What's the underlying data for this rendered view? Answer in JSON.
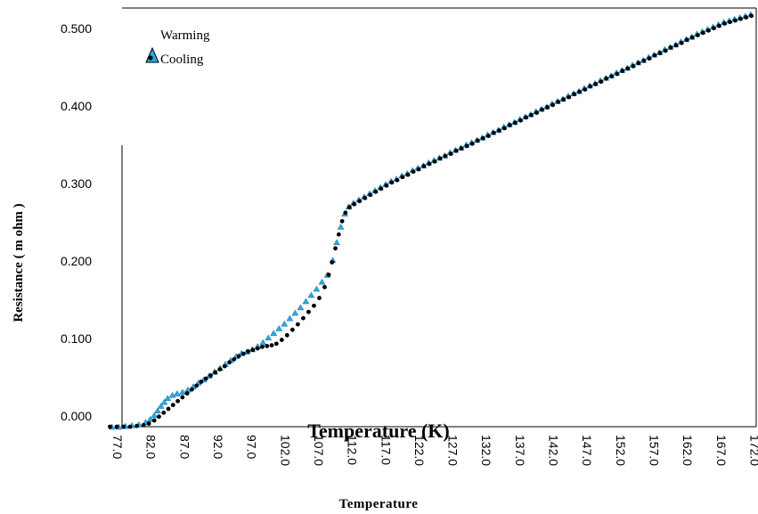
{
  "chart_data": {
    "type": "scatter",
    "title": "",
    "xlabel": "Temperature",
    "xlabel_overlay": "Temperature (K)",
    "ylabel": "Resistance ( m ohm )",
    "xlim": [
      77.0,
      173.0
    ],
    "ylim": [
      0.0,
      0.54
    ],
    "x_ticks": [
      "77.0",
      "82.0",
      "87.0",
      "92.0",
      "97.0",
      "102.0",
      "107.0",
      "112.0",
      "117.0",
      "122.0",
      "127.0",
      "132.0",
      "137.0",
      "142.0",
      "147.0",
      "152.0",
      "157.0",
      "162.0",
      "167.0",
      "172.0"
    ],
    "x_tick_values": [
      77,
      82,
      87,
      92,
      97,
      102,
      107,
      112,
      117,
      122,
      127,
      132,
      137,
      142,
      147,
      152,
      157,
      162,
      167,
      172
    ],
    "y_ticks": [
      "0.000",
      "0.100",
      "0.200",
      "0.300",
      "0.400",
      "0.500"
    ],
    "y_tick_values": [
      0.0,
      0.1,
      0.2,
      0.3,
      0.4,
      0.5
    ],
    "legend_position": "top-left",
    "grid": false,
    "series": [
      {
        "name": "Warming",
        "marker": "triangle",
        "color": "#29abe2",
        "points": [
          [
            77.5,
            0.0
          ],
          [
            78.5,
            0.0
          ],
          [
            79.5,
            0.001
          ],
          [
            80.5,
            0.002
          ],
          [
            81.5,
            0.003
          ],
          [
            82.5,
            0.006
          ],
          [
            83.2,
            0.01
          ],
          [
            83.8,
            0.015
          ],
          [
            84.3,
            0.021
          ],
          [
            84.8,
            0.027
          ],
          [
            85.3,
            0.032
          ],
          [
            85.8,
            0.037
          ],
          [
            86.5,
            0.041
          ],
          [
            87.2,
            0.043
          ],
          [
            88.0,
            0.045
          ],
          [
            88.8,
            0.048
          ],
          [
            89.6,
            0.052
          ],
          [
            90.4,
            0.057
          ],
          [
            91.2,
            0.061
          ],
          [
            92.0,
            0.066
          ],
          [
            92.8,
            0.071
          ],
          [
            93.6,
            0.076
          ],
          [
            94.4,
            0.081
          ],
          [
            95.2,
            0.086
          ],
          [
            96.0,
            0.091
          ],
          [
            96.8,
            0.095
          ],
          [
            97.6,
            0.097
          ],
          [
            98.4,
            0.1
          ],
          [
            99.2,
            0.104
          ],
          [
            100.0,
            0.109
          ],
          [
            100.8,
            0.115
          ],
          [
            101.6,
            0.121
          ],
          [
            102.4,
            0.127
          ],
          [
            103.2,
            0.133
          ],
          [
            104.0,
            0.14
          ],
          [
            104.8,
            0.147
          ],
          [
            105.6,
            0.154
          ],
          [
            106.4,
            0.162
          ],
          [
            107.2,
            0.17
          ],
          [
            108.0,
            0.178
          ],
          [
            108.8,
            0.187
          ],
          [
            109.6,
            0.196
          ],
          [
            110.4,
            0.215
          ],
          [
            111.0,
            0.238
          ],
          [
            111.6,
            0.258
          ],
          [
            112.2,
            0.275
          ],
          [
            112.8,
            0.284
          ],
          [
            113.5,
            0.289
          ],
          [
            114.3,
            0.293
          ],
          [
            115.1,
            0.297
          ],
          [
            115.9,
            0.301
          ],
          [
            116.7,
            0.305
          ],
          [
            117.5,
            0.309
          ],
          [
            118.3,
            0.313
          ],
          [
            119.1,
            0.317
          ],
          [
            119.9,
            0.32
          ],
          [
            120.7,
            0.324
          ],
          [
            121.5,
            0.327
          ],
          [
            122.3,
            0.331
          ],
          [
            123.1,
            0.334
          ],
          [
            123.9,
            0.337
          ],
          [
            124.7,
            0.341
          ],
          [
            125.5,
            0.344
          ],
          [
            126.3,
            0.347
          ],
          [
            127.1,
            0.35
          ],
          [
            127.9,
            0.354
          ],
          [
            128.7,
            0.357
          ],
          [
            129.5,
            0.36
          ],
          [
            130.3,
            0.364
          ],
          [
            131.1,
            0.367
          ],
          [
            131.9,
            0.37
          ],
          [
            132.7,
            0.373
          ],
          [
            133.5,
            0.377
          ],
          [
            134.3,
            0.38
          ],
          [
            135.1,
            0.383
          ],
          [
            135.9,
            0.387
          ],
          [
            136.7,
            0.39
          ],
          [
            137.5,
            0.393
          ],
          [
            138.3,
            0.397
          ],
          [
            139.1,
            0.4
          ],
          [
            139.9,
            0.403
          ],
          [
            140.7,
            0.407
          ],
          [
            141.5,
            0.41
          ],
          [
            142.3,
            0.413
          ],
          [
            143.1,
            0.417
          ],
          [
            143.9,
            0.42
          ],
          [
            144.7,
            0.423
          ],
          [
            145.5,
            0.427
          ],
          [
            146.3,
            0.43
          ],
          [
            147.1,
            0.433
          ],
          [
            147.9,
            0.437
          ],
          [
            148.7,
            0.44
          ],
          [
            149.5,
            0.443
          ],
          [
            150.3,
            0.447
          ],
          [
            151.1,
            0.45
          ],
          [
            151.9,
            0.453
          ],
          [
            152.7,
            0.457
          ],
          [
            153.5,
            0.46
          ],
          [
            154.3,
            0.463
          ],
          [
            155.1,
            0.467
          ],
          [
            155.9,
            0.47
          ],
          [
            156.7,
            0.473
          ],
          [
            157.5,
            0.477
          ],
          [
            158.3,
            0.48
          ],
          [
            159.1,
            0.483
          ],
          [
            159.9,
            0.487
          ],
          [
            160.7,
            0.49
          ],
          [
            161.5,
            0.493
          ],
          [
            162.3,
            0.497
          ],
          [
            163.1,
            0.5
          ],
          [
            163.9,
            0.503
          ],
          [
            164.7,
            0.507
          ],
          [
            165.5,
            0.51
          ],
          [
            166.3,
            0.513
          ],
          [
            167.1,
            0.516
          ],
          [
            167.9,
            0.519
          ],
          [
            168.7,
            0.522
          ],
          [
            169.5,
            0.524
          ],
          [
            170.3,
            0.526
          ],
          [
            171.1,
            0.528
          ],
          [
            171.9,
            0.53
          ],
          [
            172.7,
            0.532
          ]
        ]
      },
      {
        "name": "Cooling",
        "marker": "circle",
        "color": "#000000",
        "points": [
          [
            77.2,
            0.0
          ],
          [
            78.2,
            0.0
          ],
          [
            79.2,
            0.0
          ],
          [
            80.2,
            0.0
          ],
          [
            81.2,
            0.001
          ],
          [
            82.2,
            0.002
          ],
          [
            83.0,
            0.004
          ],
          [
            83.8,
            0.008
          ],
          [
            84.5,
            0.013
          ],
          [
            85.2,
            0.018
          ],
          [
            85.9,
            0.023
          ],
          [
            86.6,
            0.028
          ],
          [
            87.3,
            0.033
          ],
          [
            88.0,
            0.038
          ],
          [
            88.7,
            0.043
          ],
          [
            89.4,
            0.048
          ],
          [
            90.1,
            0.053
          ],
          [
            90.8,
            0.058
          ],
          [
            91.5,
            0.062
          ],
          [
            92.2,
            0.066
          ],
          [
            92.9,
            0.07
          ],
          [
            93.6,
            0.074
          ],
          [
            94.3,
            0.078
          ],
          [
            95.0,
            0.083
          ],
          [
            95.7,
            0.087
          ],
          [
            96.4,
            0.091
          ],
          [
            97.1,
            0.094
          ],
          [
            97.8,
            0.097
          ],
          [
            98.5,
            0.099
          ],
          [
            99.2,
            0.101
          ],
          [
            99.9,
            0.103
          ],
          [
            100.6,
            0.104
          ],
          [
            101.3,
            0.105
          ],
          [
            102.0,
            0.107
          ],
          [
            102.8,
            0.112
          ],
          [
            103.6,
            0.118
          ],
          [
            104.4,
            0.125
          ],
          [
            105.2,
            0.132
          ],
          [
            106.0,
            0.14
          ],
          [
            106.8,
            0.148
          ],
          [
            107.6,
            0.156
          ],
          [
            108.4,
            0.166
          ],
          [
            109.2,
            0.18
          ],
          [
            109.8,
            0.196
          ],
          [
            110.3,
            0.212
          ],
          [
            110.8,
            0.23
          ],
          [
            111.3,
            0.248
          ],
          [
            111.8,
            0.265
          ],
          [
            112.3,
            0.276
          ],
          [
            112.9,
            0.283
          ],
          [
            113.6,
            0.287
          ],
          [
            114.4,
            0.291
          ],
          [
            115.2,
            0.295
          ],
          [
            116.0,
            0.299
          ],
          [
            116.8,
            0.303
          ],
          [
            117.6,
            0.307
          ],
          [
            118.4,
            0.311
          ],
          [
            119.2,
            0.315
          ],
          [
            120.0,
            0.318
          ],
          [
            120.8,
            0.322
          ],
          [
            121.6,
            0.325
          ],
          [
            122.4,
            0.329
          ],
          [
            123.2,
            0.332
          ],
          [
            124.0,
            0.336
          ],
          [
            124.8,
            0.339
          ],
          [
            125.6,
            0.342
          ],
          [
            126.4,
            0.346
          ],
          [
            127.2,
            0.349
          ],
          [
            128.0,
            0.352
          ],
          [
            128.8,
            0.356
          ],
          [
            129.6,
            0.359
          ],
          [
            130.4,
            0.362
          ],
          [
            131.2,
            0.365
          ],
          [
            132.0,
            0.369
          ],
          [
            132.8,
            0.372
          ],
          [
            133.6,
            0.375
          ],
          [
            134.4,
            0.379
          ],
          [
            135.2,
            0.382
          ],
          [
            136.0,
            0.385
          ],
          [
            136.8,
            0.389
          ],
          [
            137.6,
            0.392
          ],
          [
            138.4,
            0.395
          ],
          [
            139.2,
            0.399
          ],
          [
            140.0,
            0.402
          ],
          [
            140.8,
            0.405
          ],
          [
            141.6,
            0.409
          ],
          [
            142.4,
            0.412
          ],
          [
            143.2,
            0.415
          ],
          [
            144.0,
            0.419
          ],
          [
            144.8,
            0.422
          ],
          [
            145.6,
            0.425
          ],
          [
            146.4,
            0.429
          ],
          [
            147.2,
            0.432
          ],
          [
            148.0,
            0.435
          ],
          [
            148.8,
            0.439
          ],
          [
            149.6,
            0.442
          ],
          [
            150.4,
            0.445
          ],
          [
            151.2,
            0.449
          ],
          [
            152.0,
            0.452
          ],
          [
            152.8,
            0.455
          ],
          [
            153.6,
            0.459
          ],
          [
            154.4,
            0.462
          ],
          [
            155.2,
            0.465
          ],
          [
            156.0,
            0.469
          ],
          [
            156.8,
            0.472
          ],
          [
            157.6,
            0.475
          ],
          [
            158.4,
            0.479
          ],
          [
            159.2,
            0.482
          ],
          [
            160.0,
            0.485
          ],
          [
            160.8,
            0.489
          ],
          [
            161.6,
            0.492
          ],
          [
            162.4,
            0.495
          ],
          [
            163.2,
            0.499
          ],
          [
            164.0,
            0.502
          ],
          [
            164.8,
            0.505
          ],
          [
            165.6,
            0.508
          ],
          [
            166.4,
            0.511
          ],
          [
            167.2,
            0.514
          ],
          [
            168.0,
            0.517
          ],
          [
            168.8,
            0.52
          ],
          [
            169.6,
            0.522
          ],
          [
            170.4,
            0.524
          ],
          [
            171.2,
            0.526
          ],
          [
            172.0,
            0.528
          ],
          [
            172.8,
            0.53
          ]
        ]
      }
    ]
  }
}
